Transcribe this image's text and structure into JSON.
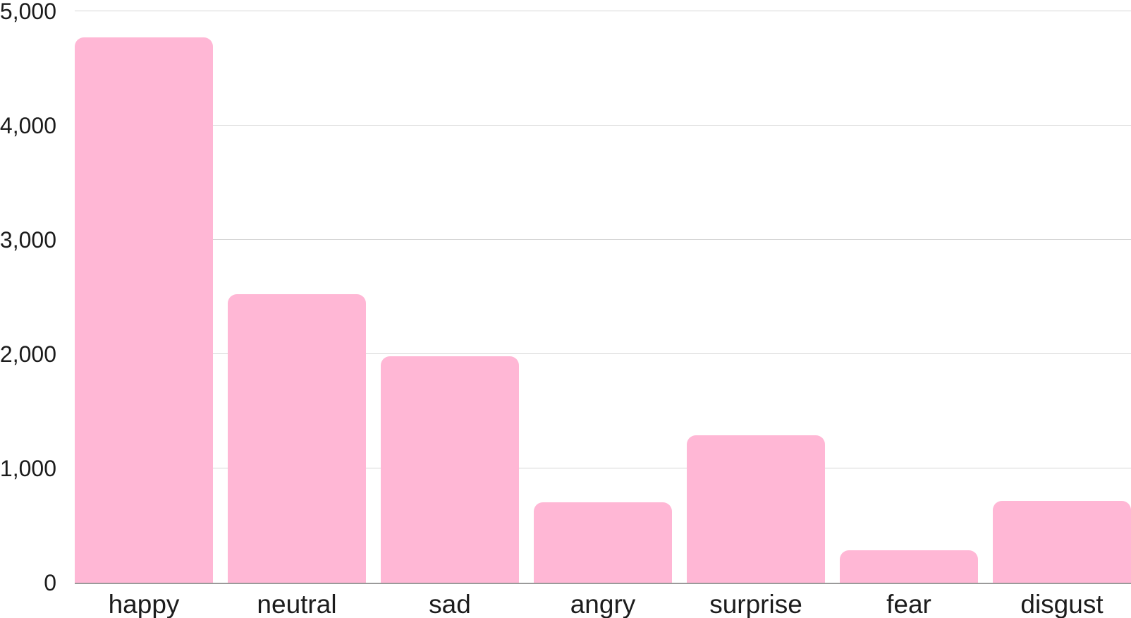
{
  "chart_data": {
    "type": "bar",
    "categories": [
      "happy",
      "neutral",
      "sad",
      "angry",
      "surprise",
      "fear",
      "disgust"
    ],
    "values": [
      4772,
      2524,
      1982,
      705,
      1290,
      281,
      717
    ],
    "ylim": [
      0,
      5000
    ],
    "yticks": [
      {
        "value": 0,
        "label": "0"
      },
      {
        "value": 1000,
        "label": "1,000"
      },
      {
        "value": 2000,
        "label": "2,000"
      },
      {
        "value": 3000,
        "label": "3,000"
      },
      {
        "value": 4000,
        "label": "4,000"
      },
      {
        "value": 5000,
        "label": "5,000"
      }
    ],
    "grid": "horizontal",
    "legend": "none",
    "bar_color": "#ffb7d5",
    "gridline_color": "#d6d6d6",
    "axis_line_color": "#9a9a9a",
    "label_color": "#1c1c1c"
  }
}
